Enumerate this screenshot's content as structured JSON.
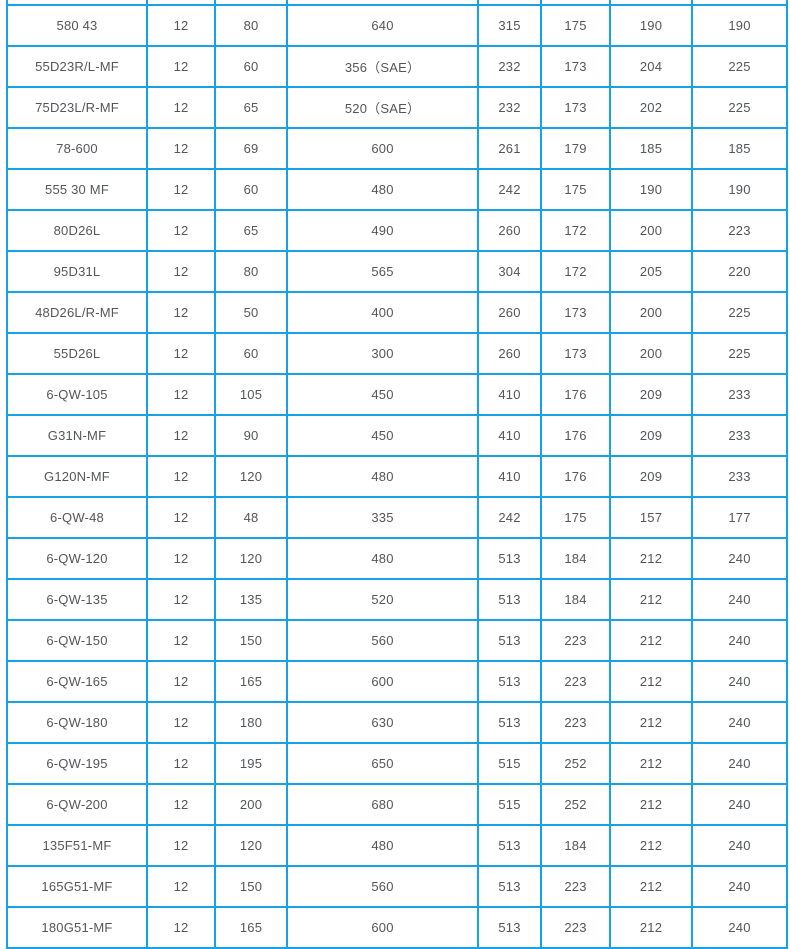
{
  "colors": {
    "border": "#18A2E6",
    "text": "#55565A",
    "background": "#FFFFFF"
  },
  "table": {
    "rows": [
      [
        "580 43",
        "12",
        "80",
        "640",
        "315",
        "175",
        "190",
        "190"
      ],
      [
        "55D23R/L-MF",
        "12",
        "60",
        "356（SAE）",
        "232",
        "173",
        "204",
        "225"
      ],
      [
        "75D23L/R-MF",
        "12",
        "65",
        "520（SAE）",
        "232",
        "173",
        "202",
        "225"
      ],
      [
        "78-600",
        "12",
        "69",
        "600",
        "261",
        "179",
        "185",
        "185"
      ],
      [
        "555 30 MF",
        "12",
        "60",
        "480",
        "242",
        "175",
        "190",
        "190"
      ],
      [
        "80D26L",
        "12",
        "65",
        "490",
        "260",
        "172",
        "200",
        "223"
      ],
      [
        "95D31L",
        "12",
        "80",
        "565",
        "304",
        "172",
        "205",
        "220"
      ],
      [
        "48D26L/R-MF",
        "12",
        "50",
        "400",
        "260",
        "173",
        "200",
        "225"
      ],
      [
        "55D26L",
        "12",
        "60",
        "300",
        "260",
        "173",
        "200",
        "225"
      ],
      [
        "6-QW-105",
        "12",
        "105",
        "450",
        "410",
        "176",
        "209",
        "233"
      ],
      [
        "G31N-MF",
        "12",
        "90",
        "450",
        "410",
        "176",
        "209",
        "233"
      ],
      [
        "G120N-MF",
        "12",
        "120",
        "480",
        "410",
        "176",
        "209",
        "233"
      ],
      [
        "6-QW-48",
        "12",
        "48",
        "335",
        "242",
        "175",
        "157",
        "177"
      ],
      [
        "6-QW-120",
        "12",
        "120",
        "480",
        "513",
        "184",
        "212",
        "240"
      ],
      [
        "6-QW-135",
        "12",
        "135",
        "520",
        "513",
        "184",
        "212",
        "240"
      ],
      [
        "6-QW-150",
        "12",
        "150",
        "560",
        "513",
        "223",
        "212",
        "240"
      ],
      [
        "6-QW-165",
        "12",
        "165",
        "600",
        "513",
        "223",
        "212",
        "240"
      ],
      [
        "6-QW-180",
        "12",
        "180",
        "630",
        "513",
        "223",
        "212",
        "240"
      ],
      [
        "6-QW-195",
        "12",
        "195",
        "650",
        "515",
        "252",
        "212",
        "240"
      ],
      [
        "6-QW-200",
        "12",
        "200",
        "680",
        "515",
        "252",
        "212",
        "240"
      ],
      [
        "135F51-MF",
        "12",
        "120",
        "480",
        "513",
        "184",
        "212",
        "240"
      ],
      [
        "165G51-MF",
        "12",
        "150",
        "560",
        "513",
        "223",
        "212",
        "240"
      ],
      [
        "180G51-MF",
        "12",
        "165",
        "600",
        "513",
        "223",
        "212",
        "240"
      ]
    ]
  }
}
